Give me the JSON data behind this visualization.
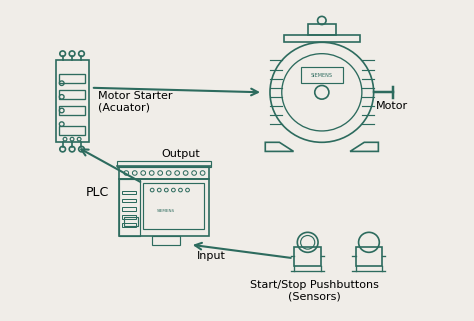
{
  "bg_color": "#f0ede8",
  "line_color": "#2d6b5e",
  "text_color": "#000000",
  "title": "",
  "labels": {
    "motor_starter": "Motor Starter\n(Acuator)",
    "motor": "Motor",
    "plc": "PLC",
    "output": "Output",
    "input": "Input",
    "sensors": "Start/Stop Pushbuttons\n(Sensors)"
  },
  "arrow_color": "#2d6b5e",
  "figsize": [
    4.74,
    3.21
  ],
  "dpi": 100
}
